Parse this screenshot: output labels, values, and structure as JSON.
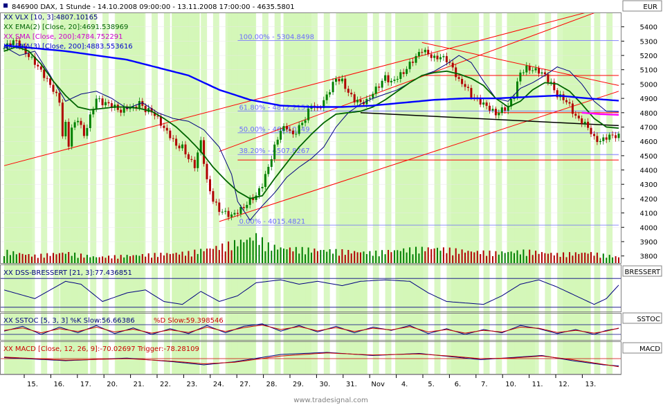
{
  "header": {
    "title": "846900  DAX, 1 Stunde - 14.10.2008 09:00:00 - 13.11.2008 17:00:00 - 4635.5801",
    "currency": "EUR",
    "watermark": "www.tradesignal.com"
  },
  "panels": {
    "main_legend": [
      {
        "text": "XX VLX [10, 3]:4807.10165",
        "color": "#000080"
      },
      {
        "text": "XX EMA(2) [Close, 20]:4691.538969",
        "color": "#006400"
      },
      {
        "text": "XX SMA [Close, 200]:4784.752291",
        "color": "#cc00cc"
      },
      {
        "text": "XX EMA(3) [Close, 200]:4883.553616",
        "color": "#0000cc"
      }
    ],
    "dss": {
      "legend": "XX DSS-BRESSERT [21, 3]:77.436851",
      "tab": "BRESSERT"
    },
    "sstoc": {
      "legend_a": "XX SSTOC [5, 3, 3] %K Slow:56.66386",
      "legend_b": "%D Slow:59.398546",
      "tab": "SSTOC"
    },
    "macd": {
      "legend": "XX MACD [Close, 12, 26, 9]:-70.02697  Trigger:-78.28109",
      "tab": "MACD"
    }
  },
  "colors": {
    "up_candle": "#008000",
    "down_candle": "#b00000",
    "band_fill": "#d4f7b8",
    "ema20": "#006400",
    "ema200": "#0000ff",
    "sma200": "#ff00ff",
    "vlx": "#000080",
    "trend": "#ff0000",
    "fib": "#6b6bff"
  },
  "chart_data": {
    "type": "candlestick",
    "y_axis": {
      "range": [
        3750,
        5500
      ],
      "ticks": [
        3800,
        3900,
        4000,
        4100,
        4200,
        4300,
        4400,
        4500,
        4600,
        4700,
        4800,
        4900,
        5000,
        5100,
        5200,
        5300,
        5400
      ]
    },
    "dss_axis_ticks": [
      "100",
      "0"
    ],
    "x_labels": [
      "15.",
      "16.",
      "17.",
      "20.",
      "21.",
      "22.",
      "23.",
      "24.",
      "27.",
      "28.",
      "29.",
      "30.",
      "31.",
      "Nov",
      "4.",
      "5.",
      "6.",
      "7.",
      "10.",
      "11.",
      "12.",
      "13."
    ],
    "fib_levels": [
      {
        "label": "100.00% - 5304.8498",
        "value": 5304.8498
      },
      {
        "label": "61.80% - 4812.2151",
        "value": 4812.2151
      },
      {
        "label": "50.00% - 4660.0349",
        "value": 4660.0349
      },
      {
        "label": "38.20% - 4507.8267",
        "value": 4507.8267
      },
      {
        "label": "0.00% - 4015.4821",
        "value": 4015.4821
      }
    ],
    "close_keypoints": [
      [
        0,
        5250
      ],
      [
        2,
        5290
      ],
      [
        4,
        5300
      ],
      [
        7,
        5220
      ],
      [
        10,
        5150
      ],
      [
        13,
        5060
      ],
      [
        16,
        4960
      ],
      [
        18,
        4880
      ],
      [
        19,
        4640
      ],
      [
        20,
        4720
      ],
      [
        21,
        4580
      ],
      [
        22,
        4690
      ],
      [
        24,
        4760
      ],
      [
        26,
        4640
      ],
      [
        28,
        4770
      ],
      [
        30,
        4900
      ],
      [
        32,
        4870
      ],
      [
        34,
        4860
      ],
      [
        36,
        4840
      ],
      [
        38,
        4810
      ],
      [
        40,
        4840
      ],
      [
        42,
        4830
      ],
      [
        44,
        4870
      ],
      [
        46,
        4820
      ],
      [
        48,
        4810
      ],
      [
        50,
        4760
      ],
      [
        52,
        4690
      ],
      [
        54,
        4640
      ],
      [
        56,
        4570
      ],
      [
        58,
        4560
      ],
      [
        60,
        4480
      ],
      [
        62,
        4430
      ],
      [
        64,
        4600
      ],
      [
        66,
        4320
      ],
      [
        68,
        4190
      ],
      [
        70,
        4120
      ],
      [
        72,
        4100
      ],
      [
        74,
        4080
      ],
      [
        76,
        4110
      ],
      [
        78,
        4140
      ],
      [
        80,
        4190
      ],
      [
        82,
        4220
      ],
      [
        84,
        4300
      ],
      [
        86,
        4420
      ],
      [
        88,
        4560
      ],
      [
        90,
        4680
      ],
      [
        92,
        4700
      ],
      [
        94,
        4640
      ],
      [
        96,
        4700
      ],
      [
        98,
        4760
      ],
      [
        100,
        4860
      ],
      [
        102,
        4820
      ],
      [
        104,
        4880
      ],
      [
        106,
        4960
      ],
      [
        108,
        5040
      ],
      [
        110,
        5020
      ],
      [
        112,
        4940
      ],
      [
        114,
        4890
      ],
      [
        116,
        4870
      ],
      [
        118,
        4880
      ],
      [
        120,
        4940
      ],
      [
        122,
        4990
      ],
      [
        124,
        5050
      ],
      [
        126,
        5010
      ],
      [
        128,
        5050
      ],
      [
        130,
        5080
      ],
      [
        132,
        5140
      ],
      [
        134,
        5190
      ],
      [
        136,
        5240
      ],
      [
        138,
        5210
      ],
      [
        140,
        5180
      ],
      [
        142,
        5190
      ],
      [
        144,
        5170
      ],
      [
        146,
        5110
      ],
      [
        148,
        5020
      ],
      [
        150,
        4990
      ],
      [
        152,
        4920
      ],
      [
        154,
        4890
      ],
      [
        156,
        4860
      ],
      [
        158,
        4830
      ],
      [
        160,
        4790
      ],
      [
        162,
        4820
      ],
      [
        164,
        4840
      ],
      [
        166,
        4930
      ],
      [
        168,
        5080
      ],
      [
        170,
        5110
      ],
      [
        172,
        5100
      ],
      [
        174,
        5090
      ],
      [
        176,
        5060
      ],
      [
        178,
        5000
      ],
      [
        180,
        4920
      ],
      [
        182,
        4900
      ],
      [
        184,
        4850
      ],
      [
        186,
        4770
      ],
      [
        188,
        4740
      ],
      [
        190,
        4700
      ],
      [
        192,
        4620
      ],
      [
        194,
        4600
      ],
      [
        196,
        4630
      ],
      [
        198,
        4640
      ],
      [
        200,
        4636
      ]
    ],
    "ema20_keypoints": [
      [
        0,
        5230
      ],
      [
        4,
        5260
      ],
      [
        8,
        5230
      ],
      [
        12,
        5140
      ],
      [
        16,
        5020
      ],
      [
        20,
        4920
      ],
      [
        24,
        4840
      ],
      [
        28,
        4820
      ],
      [
        32,
        4830
      ],
      [
        36,
        4840
      ],
      [
        40,
        4840
      ],
      [
        44,
        4830
      ],
      [
        48,
        4810
      ],
      [
        52,
        4760
      ],
      [
        56,
        4700
      ],
      [
        60,
        4620
      ],
      [
        64,
        4530
      ],
      [
        68,
        4420
      ],
      [
        72,
        4330
      ],
      [
        76,
        4250
      ],
      [
        80,
        4200
      ],
      [
        84,
        4220
      ],
      [
        88,
        4340
      ],
      [
        92,
        4450
      ],
      [
        96,
        4560
      ],
      [
        100,
        4650
      ],
      [
        104,
        4730
      ],
      [
        108,
        4790
      ],
      [
        112,
        4800
      ],
      [
        116,
        4810
      ],
      [
        120,
        4840
      ],
      [
        124,
        4890
      ],
      [
        128,
        4950
      ],
      [
        132,
        5010
      ],
      [
        136,
        5060
      ],
      [
        140,
        5080
      ],
      [
        144,
        5090
      ],
      [
        148,
        5070
      ],
      [
        152,
        5040
      ],
      [
        156,
        4990
      ],
      [
        160,
        4900
      ],
      [
        164,
        4840
      ],
      [
        168,
        4880
      ],
      [
        172,
        4960
      ],
      [
        176,
        5010
      ],
      [
        180,
        5000
      ],
      [
        184,
        4950
      ],
      [
        188,
        4860
      ],
      [
        192,
        4760
      ],
      [
        196,
        4700
      ],
      [
        200,
        4692
      ]
    ],
    "ema200_keypoints": [
      [
        0,
        5270
      ],
      [
        20,
        5230
      ],
      [
        40,
        5170
      ],
      [
        60,
        5060
      ],
      [
        70,
        4960
      ],
      [
        80,
        4890
      ],
      [
        90,
        4850
      ],
      [
        100,
        4840
      ],
      [
        110,
        4840
      ],
      [
        120,
        4850
      ],
      [
        130,
        4870
      ],
      [
        140,
        4890
      ],
      [
        150,
        4900
      ],
      [
        160,
        4900
      ],
      [
        170,
        4910
      ],
      [
        180,
        4920
      ],
      [
        190,
        4900
      ],
      [
        200,
        4884
      ]
    ],
    "vlx_keypoints": [
      [
        0,
        5260
      ],
      [
        5,
        5200
      ],
      [
        10,
        5230
      ],
      [
        15,
        5060
      ],
      [
        20,
        4880
      ],
      [
        25,
        4930
      ],
      [
        30,
        4950
      ],
      [
        35,
        4900
      ],
      [
        40,
        4830
      ],
      [
        45,
        4870
      ],
      [
        50,
        4800
      ],
      [
        55,
        4760
      ],
      [
        60,
        4740
      ],
      [
        65,
        4680
      ],
      [
        70,
        4560
      ],
      [
        74,
        4370
      ],
      [
        76,
        4180
      ],
      [
        80,
        4050
      ],
      [
        84,
        4150
      ],
      [
        88,
        4240
      ],
      [
        92,
        4350
      ],
      [
        96,
        4420
      ],
      [
        100,
        4480
      ],
      [
        104,
        4560
      ],
      [
        108,
        4700
      ],
      [
        112,
        4800
      ],
      [
        116,
        4860
      ],
      [
        120,
        4900
      ],
      [
        124,
        4930
      ],
      [
        128,
        4960
      ],
      [
        132,
        5010
      ],
      [
        136,
        5060
      ],
      [
        140,
        5090
      ],
      [
        144,
        5140
      ],
      [
        148,
        5200
      ],
      [
        152,
        5150
      ],
      [
        156,
        5020
      ],
      [
        160,
        4900
      ],
      [
        164,
        4880
      ],
      [
        168,
        4970
      ],
      [
        172,
        5010
      ],
      [
        176,
        5060
      ],
      [
        180,
        5120
      ],
      [
        184,
        5090
      ],
      [
        188,
        5000
      ],
      [
        192,
        4880
      ],
      [
        196,
        4810
      ],
      [
        200,
        4807
      ]
    ],
    "sma200_keypoints": [
      [
        188,
        4800
      ],
      [
        194,
        4790
      ],
      [
        200,
        4785
      ]
    ],
    "volume_keypoints": [
      [
        0,
        40
      ],
      [
        10,
        25
      ],
      [
        20,
        35
      ],
      [
        30,
        20
      ],
      [
        40,
        25
      ],
      [
        50,
        30
      ],
      [
        60,
        35
      ],
      [
        70,
        55
      ],
      [
        78,
        75
      ],
      [
        82,
        90
      ],
      [
        86,
        60
      ],
      [
        90,
        50
      ],
      [
        100,
        45
      ],
      [
        110,
        40
      ],
      [
        120,
        35
      ],
      [
        130,
        45
      ],
      [
        140,
        50
      ],
      [
        150,
        40
      ],
      [
        160,
        35
      ],
      [
        170,
        40
      ],
      [
        180,
        30
      ],
      [
        190,
        35
      ],
      [
        200,
        20
      ]
    ],
    "dss_keypoints": [
      [
        0,
        60
      ],
      [
        10,
        30
      ],
      [
        20,
        90
      ],
      [
        25,
        80
      ],
      [
        32,
        20
      ],
      [
        40,
        50
      ],
      [
        46,
        60
      ],
      [
        52,
        20
      ],
      [
        58,
        10
      ],
      [
        64,
        55
      ],
      [
        70,
        20
      ],
      [
        76,
        40
      ],
      [
        82,
        85
      ],
      [
        90,
        95
      ],
      [
        96,
        80
      ],
      [
        102,
        90
      ],
      [
        110,
        75
      ],
      [
        116,
        90
      ],
      [
        124,
        95
      ],
      [
        132,
        90
      ],
      [
        138,
        50
      ],
      [
        144,
        20
      ],
      [
        150,
        15
      ],
      [
        156,
        10
      ],
      [
        162,
        40
      ],
      [
        168,
        80
      ],
      [
        174,
        95
      ],
      [
        180,
        70
      ],
      [
        186,
        40
      ],
      [
        192,
        10
      ],
      [
        196,
        30
      ],
      [
        200,
        77
      ]
    ],
    "sstoc_k_keypoints": [
      [
        0,
        40
      ],
      [
        6,
        70
      ],
      [
        12,
        20
      ],
      [
        18,
        65
      ],
      [
        24,
        30
      ],
      [
        30,
        75
      ],
      [
        36,
        25
      ],
      [
        42,
        60
      ],
      [
        48,
        20
      ],
      [
        54,
        55
      ],
      [
        60,
        25
      ],
      [
        66,
        75
      ],
      [
        72,
        30
      ],
      [
        78,
        70
      ],
      [
        84,
        85
      ],
      [
        90,
        40
      ],
      [
        96,
        75
      ],
      [
        102,
        35
      ],
      [
        108,
        70
      ],
      [
        114,
        30
      ],
      [
        120,
        65
      ],
      [
        126,
        45
      ],
      [
        132,
        75
      ],
      [
        138,
        25
      ],
      [
        144,
        55
      ],
      [
        150,
        20
      ],
      [
        156,
        50
      ],
      [
        162,
        30
      ],
      [
        168,
        75
      ],
      [
        174,
        55
      ],
      [
        180,
        25
      ],
      [
        186,
        50
      ],
      [
        192,
        20
      ],
      [
        196,
        45
      ],
      [
        200,
        57
      ]
    ],
    "sstoc_d_keypoints": [
      [
        0,
        45
      ],
      [
        6,
        60
      ],
      [
        12,
        30
      ],
      [
        18,
        55
      ],
      [
        24,
        38
      ],
      [
        30,
        65
      ],
      [
        36,
        35
      ],
      [
        42,
        52
      ],
      [
        48,
        28
      ],
      [
        54,
        48
      ],
      [
        60,
        32
      ],
      [
        66,
        65
      ],
      [
        72,
        38
      ],
      [
        78,
        62
      ],
      [
        84,
        78
      ],
      [
        90,
        50
      ],
      [
        96,
        68
      ],
      [
        102,
        42
      ],
      [
        108,
        62
      ],
      [
        114,
        38
      ],
      [
        120,
        58
      ],
      [
        126,
        48
      ],
      [
        132,
        68
      ],
      [
        138,
        35
      ],
      [
        144,
        50
      ],
      [
        150,
        28
      ],
      [
        156,
        45
      ],
      [
        162,
        35
      ],
      [
        168,
        65
      ],
      [
        174,
        58
      ],
      [
        180,
        32
      ],
      [
        186,
        45
      ],
      [
        192,
        28
      ],
      [
        196,
        40
      ],
      [
        200,
        59
      ]
    ],
    "macd_keypoints": [
      [
        0,
        10
      ],
      [
        20,
        -20
      ],
      [
        40,
        5
      ],
      [
        55,
        -30
      ],
      [
        65,
        -60
      ],
      [
        75,
        -30
      ],
      [
        90,
        40
      ],
      [
        105,
        60
      ],
      [
        120,
        30
      ],
      [
        135,
        50
      ],
      [
        145,
        20
      ],
      [
        155,
        -10
      ],
      [
        165,
        10
      ],
      [
        175,
        30
      ],
      [
        185,
        -20
      ],
      [
        195,
        -60
      ],
      [
        200,
        -70
      ]
    ],
    "macd_trigger_keypoints": [
      [
        0,
        15
      ],
      [
        20,
        -15
      ],
      [
        40,
        0
      ],
      [
        55,
        -25
      ],
      [
        65,
        -50
      ],
      [
        75,
        -35
      ],
      [
        90,
        25
      ],
      [
        105,
        55
      ],
      [
        120,
        35
      ],
      [
        135,
        45
      ],
      [
        145,
        25
      ],
      [
        155,
        0
      ],
      [
        165,
        5
      ],
      [
        175,
        25
      ],
      [
        185,
        -10
      ],
      [
        195,
        -55
      ],
      [
        200,
        -78
      ]
    ]
  }
}
